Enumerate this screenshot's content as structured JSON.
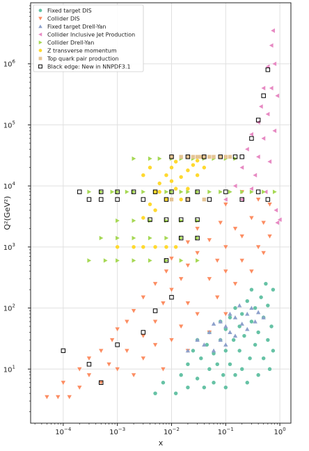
{
  "chart_data": {
    "type": "scatter",
    "title": "",
    "xlabel": "x",
    "ylabel": "Q²(GeV²)",
    "x_scale": "log",
    "y_scale": "log",
    "xlim": [
      2.5e-05,
      1.6
    ],
    "ylim": [
      1.3,
      10000000.0
    ],
    "grid": true,
    "legend_placement": "top-left",
    "x_ticks": [
      {
        "value": 0.0001,
        "base": "10",
        "exp": "−4"
      },
      {
        "value": 0.001,
        "base": "10",
        "exp": "−3"
      },
      {
        "value": 0.01,
        "base": "10",
        "exp": "−2"
      },
      {
        "value": 0.1,
        "base": "10",
        "exp": "−1"
      },
      {
        "value": 1,
        "base": "10",
        "exp": "0"
      }
    ],
    "y_ticks": [
      {
        "value": 10,
        "base": "10",
        "exp": "1"
      },
      {
        "value": 100,
        "base": "10",
        "exp": "2"
      },
      {
        "value": 1000,
        "base": "10",
        "exp": "3"
      },
      {
        "value": 10000,
        "base": "10",
        "exp": "4"
      },
      {
        "value": 100000,
        "base": "10",
        "exp": "5"
      },
      {
        "value": 1000000,
        "base": "10",
        "exp": "6"
      }
    ],
    "series": [
      {
        "name": "Fixed target DIS",
        "marker": "circle",
        "color": "#66c2a5",
        "points": [
          [
            0.005,
            4
          ],
          [
            0.007,
            6
          ],
          [
            0.012,
            4
          ],
          [
            0.015,
            8
          ],
          [
            0.02,
            5
          ],
          [
            0.02,
            12
          ],
          [
            0.025,
            20
          ],
          [
            0.03,
            7
          ],
          [
            0.03,
            30
          ],
          [
            0.035,
            15
          ],
          [
            0.04,
            5
          ],
          [
            0.045,
            25
          ],
          [
            0.05,
            10
          ],
          [
            0.05,
            40
          ],
          [
            0.06,
            6
          ],
          [
            0.06,
            18
          ],
          [
            0.07,
            12
          ],
          [
            0.08,
            30
          ],
          [
            0.08,
            60
          ],
          [
            0.09,
            8
          ],
          [
            0.1,
            5
          ],
          [
            0.1,
            20
          ],
          [
            0.1,
            45
          ],
          [
            0.12,
            12
          ],
          [
            0.12,
            70
          ],
          [
            0.14,
            30
          ],
          [
            0.15,
            8
          ],
          [
            0.15,
            100
          ],
          [
            0.18,
            20
          ],
          [
            0.18,
            50
          ],
          [
            0.2,
            10
          ],
          [
            0.2,
            80
          ],
          [
            0.22,
            35
          ],
          [
            0.25,
            6
          ],
          [
            0.25,
            130
          ],
          [
            0.28,
            15
          ],
          [
            0.3,
            60
          ],
          [
            0.3,
            200
          ],
          [
            0.35,
            25
          ],
          [
            0.35,
            100
          ],
          [
            0.4,
            8
          ],
          [
            0.4,
            40
          ],
          [
            0.45,
            150
          ],
          [
            0.5,
            15
          ],
          [
            0.5,
            70
          ],
          [
            0.55,
            250
          ],
          [
            0.6,
            30
          ],
          [
            0.6,
            110
          ],
          [
            0.65,
            10
          ],
          [
            0.7,
            50
          ],
          [
            0.75,
            200
          ],
          [
            0.75,
            20
          ]
        ]
      },
      {
        "name": "Collider DIS",
        "marker": "triangle-down",
        "color": "#fc8d62",
        "points": [
          [
            5e-05,
            3.5
          ],
          [
            8e-05,
            3.5
          ],
          [
            0.0001,
            6
          ],
          [
            0.00013,
            3.5
          ],
          [
            0.0002,
            5
          ],
          [
            0.0002,
            10
          ],
          [
            0.0003,
            8
          ],
          [
            0.0003,
            15
          ],
          [
            0.0005,
            6
          ],
          [
            0.0005,
            20
          ],
          [
            0.0007,
            12
          ],
          [
            0.0008,
            30
          ],
          [
            0.001,
            10
          ],
          [
            0.001,
            45
          ],
          [
            0.0015,
            20
          ],
          [
            0.0015,
            60
          ],
          [
            0.002,
            8
          ],
          [
            0.002,
            90
          ],
          [
            0.003,
            15
          ],
          [
            0.003,
            35
          ],
          [
            0.003,
            150
          ],
          [
            0.005,
            25
          ],
          [
            0.005,
            60
          ],
          [
            0.005,
            250
          ],
          [
            0.007,
            10
          ],
          [
            0.007,
            120
          ],
          [
            0.008,
            400
          ],
          [
            0.01,
            30
          ],
          [
            0.01,
            200
          ],
          [
            0.01,
            650
          ],
          [
            0.015,
            50
          ],
          [
            0.015,
            300
          ],
          [
            0.02,
            20
          ],
          [
            0.02,
            120
          ],
          [
            0.02,
            500
          ],
          [
            0.02,
            1200
          ],
          [
            0.03,
            80
          ],
          [
            0.03,
            800
          ],
          [
            0.03,
            2000
          ],
          [
            0.05,
            40
          ],
          [
            0.05,
            300
          ],
          [
            0.05,
            1300
          ],
          [
            0.07,
            150
          ],
          [
            0.07,
            600
          ],
          [
            0.08,
            2500
          ],
          [
            0.1,
            80
          ],
          [
            0.1,
            400
          ],
          [
            0.1,
            1000
          ],
          [
            0.1,
            5000
          ],
          [
            0.15,
            250
          ],
          [
            0.15,
            2000
          ],
          [
            0.2,
            600
          ],
          [
            0.2,
            1500
          ],
          [
            0.2,
            8000
          ],
          [
            0.3,
            400
          ],
          [
            0.3,
            3000
          ],
          [
            0.4,
            1000
          ],
          [
            0.4,
            6000
          ],
          [
            0.5,
            800
          ],
          [
            0.5,
            2500
          ],
          [
            0.65,
            1500
          ],
          [
            0.65,
            5000
          ]
        ]
      },
      {
        "name": "Fixed target Drell-Yan",
        "marker": "triangle-up",
        "color": "#8da0cb",
        "points": [
          [
            0.02,
            20
          ],
          [
            0.03,
            30
          ],
          [
            0.04,
            25
          ],
          [
            0.05,
            40
          ],
          [
            0.06,
            20
          ],
          [
            0.06,
            55
          ],
          [
            0.08,
            30
          ],
          [
            0.08,
            60
          ],
          [
            0.1,
            25
          ],
          [
            0.1,
            50
          ],
          [
            0.12,
            40
          ],
          [
            0.12,
            80
          ],
          [
            0.15,
            35
          ],
          [
            0.15,
            70
          ],
          [
            0.18,
            110
          ],
          [
            0.2,
            55
          ],
          [
            0.25,
            45
          ],
          [
            0.25,
            80
          ],
          [
            0.3,
            100
          ],
          [
            0.35,
            60
          ],
          [
            0.4,
            85
          ],
          [
            0.5,
            70
          ]
        ]
      },
      {
        "name": "Collider Inclusive Jet Production",
        "marker": "triangle-left",
        "color": "#e78ac3",
        "points": [
          [
            0.1,
            6000
          ],
          [
            0.15,
            10000
          ],
          [
            0.2,
            6000
          ],
          [
            0.2,
            20000
          ],
          [
            0.25,
            40000
          ],
          [
            0.3,
            9000
          ],
          [
            0.3,
            70000
          ],
          [
            0.35,
            15000
          ],
          [
            0.4,
            110000
          ],
          [
            0.4,
            30000
          ],
          [
            0.45,
            200000
          ],
          [
            0.5,
            60000
          ],
          [
            0.5,
            400000
          ],
          [
            0.55,
            8000
          ],
          [
            0.6,
            150000
          ],
          [
            0.6,
            900000
          ],
          [
            0.65,
            25000
          ],
          [
            0.7,
            400000
          ],
          [
            0.7,
            2000000
          ],
          [
            0.75,
            3500000
          ],
          [
            0.8,
            80000
          ],
          [
            0.8,
            1000000
          ],
          [
            0.85,
            4000
          ],
          [
            0.9,
            300000
          ],
          [
            0.9,
            2500
          ],
          [
            1.0,
            2800
          ]
        ]
      },
      {
        "name": "Collider Drell-Yan",
        "marker": "triangle-right",
        "color": "#a6d854",
        "points": [
          [
            0.0003,
            8000
          ],
          [
            0.0005,
            8000
          ],
          [
            0.0008,
            8000
          ],
          [
            0.001,
            8000
          ],
          [
            0.0015,
            8000
          ],
          [
            0.002,
            8000
          ],
          [
            0.003,
            8000
          ],
          [
            0.005,
            8000
          ],
          [
            0.008,
            8000
          ],
          [
            0.01,
            8000
          ],
          [
            0.015,
            8000
          ],
          [
            0.02,
            8000
          ],
          [
            0.03,
            8000
          ],
          [
            0.05,
            8000
          ],
          [
            0.08,
            8000
          ],
          [
            0.12,
            8000
          ],
          [
            0.2,
            8000
          ],
          [
            0.3,
            8000
          ],
          [
            0.5,
            8000
          ],
          [
            0.8,
            8000
          ],
          [
            0.002,
            28000
          ],
          [
            0.004,
            28000
          ],
          [
            0.006,
            28000
          ],
          [
            0.01,
            28000
          ],
          [
            0.015,
            28000
          ],
          [
            0.025,
            28000
          ],
          [
            0.04,
            28000
          ],
          [
            0.06,
            28000
          ],
          [
            0.1,
            28000
          ],
          [
            0.15,
            28000
          ],
          [
            0.001,
            2700
          ],
          [
            0.002,
            2700
          ],
          [
            0.004,
            2700
          ],
          [
            0.008,
            2700
          ],
          [
            0.015,
            2700
          ],
          [
            0.03,
            2700
          ],
          [
            0.0005,
            1400
          ],
          [
            0.001,
            1400
          ],
          [
            0.002,
            1400
          ],
          [
            0.004,
            1400
          ],
          [
            0.008,
            1400
          ],
          [
            0.015,
            1400
          ],
          [
            0.03,
            1400
          ],
          [
            0.0003,
            600
          ],
          [
            0.0006,
            600
          ],
          [
            0.001,
            600
          ],
          [
            0.002,
            600
          ],
          [
            0.004,
            600
          ],
          [
            0.008,
            600
          ],
          [
            0.015,
            600
          ],
          [
            0.03,
            600
          ]
        ]
      },
      {
        "name": "Z transverse momentum",
        "marker": "circle",
        "color": "#ffd92f",
        "points": [
          [
            0.003,
            3000
          ],
          [
            0.004,
            5000
          ],
          [
            0.005,
            8000
          ],
          [
            0.006,
            11000
          ],
          [
            0.008,
            15000
          ],
          [
            0.01,
            20000
          ],
          [
            0.012,
            25000
          ],
          [
            0.005,
            4000
          ],
          [
            0.008,
            6000
          ],
          [
            0.012,
            9000
          ],
          [
            0.015,
            14000
          ],
          [
            0.02,
            18000
          ],
          [
            0.025,
            22000
          ],
          [
            0.03,
            26000
          ],
          [
            0.003,
            15000
          ],
          [
            0.004,
            20000
          ],
          [
            0.006,
            8000
          ],
          [
            0.01,
            12000
          ],
          [
            0.015,
            6000
          ],
          [
            0.02,
            9000
          ],
          [
            0.03,
            15000
          ],
          [
            0.04,
            20000
          ],
          [
            0.001,
            1000
          ],
          [
            0.002,
            1000
          ],
          [
            0.003,
            1000
          ],
          [
            0.005,
            1000
          ],
          [
            0.008,
            1000
          ],
          [
            0.012,
            1000
          ]
        ]
      },
      {
        "name": "Top quark pair production",
        "marker": "square",
        "color": "#e5c494",
        "points": [
          [
            0.01,
            30000
          ],
          [
            0.015,
            30000
          ],
          [
            0.02,
            30000
          ],
          [
            0.025,
            30000
          ],
          [
            0.03,
            30000
          ],
          [
            0.035,
            30000
          ],
          [
            0.04,
            30000
          ],
          [
            0.05,
            30000
          ],
          [
            0.06,
            30000
          ],
          [
            0.08,
            30000
          ],
          [
            0.1,
            30000
          ],
          [
            0.12,
            30000
          ],
          [
            0.01,
            6000
          ],
          [
            0.02,
            6000
          ],
          [
            0.04,
            6000
          ]
        ]
      }
    ],
    "highlight": {
      "name": "Black edge: New in NNPDF3.1",
      "marker": "square-outline",
      "color": "#000000",
      "points": [
        [
          0.0002,
          8000
        ],
        [
          0.0003,
          6000
        ],
        [
          0.0005,
          8000
        ],
        [
          0.0005,
          6000
        ],
        [
          0.001,
          8000
        ],
        [
          0.001,
          6000
        ],
        [
          0.002,
          8000
        ],
        [
          0.003,
          6000
        ],
        [
          0.005,
          8000
        ],
        [
          0.008,
          6000
        ],
        [
          0.01,
          8000
        ],
        [
          0.02,
          6000
        ],
        [
          0.03,
          8000
        ],
        [
          0.05,
          6000
        ],
        [
          0.1,
          8000
        ],
        [
          0.2,
          6000
        ],
        [
          0.4,
          8000
        ],
        [
          0.6,
          6000
        ],
        [
          0.01,
          30000
        ],
        [
          0.02,
          30000
        ],
        [
          0.04,
          30000
        ],
        [
          0.08,
          30000
        ],
        [
          0.15,
          30000
        ],
        [
          0.004,
          2800
        ],
        [
          0.008,
          2800
        ],
        [
          0.015,
          2800
        ],
        [
          0.03,
          2800
        ],
        [
          0.008,
          600
        ],
        [
          0.015,
          1400
        ],
        [
          0.03,
          1400
        ],
        [
          0.0001,
          20
        ],
        [
          0.0003,
          12
        ],
        [
          0.0005,
          6
        ],
        [
          0.001,
          25
        ],
        [
          0.003,
          40
        ],
        [
          0.005,
          90
        ],
        [
          0.01,
          150
        ],
        [
          0.2,
          30000
        ],
        [
          0.3,
          60000
        ],
        [
          0.4,
          120000
        ],
        [
          0.5,
          300000
        ],
        [
          0.6,
          800000
        ]
      ]
    }
  }
}
